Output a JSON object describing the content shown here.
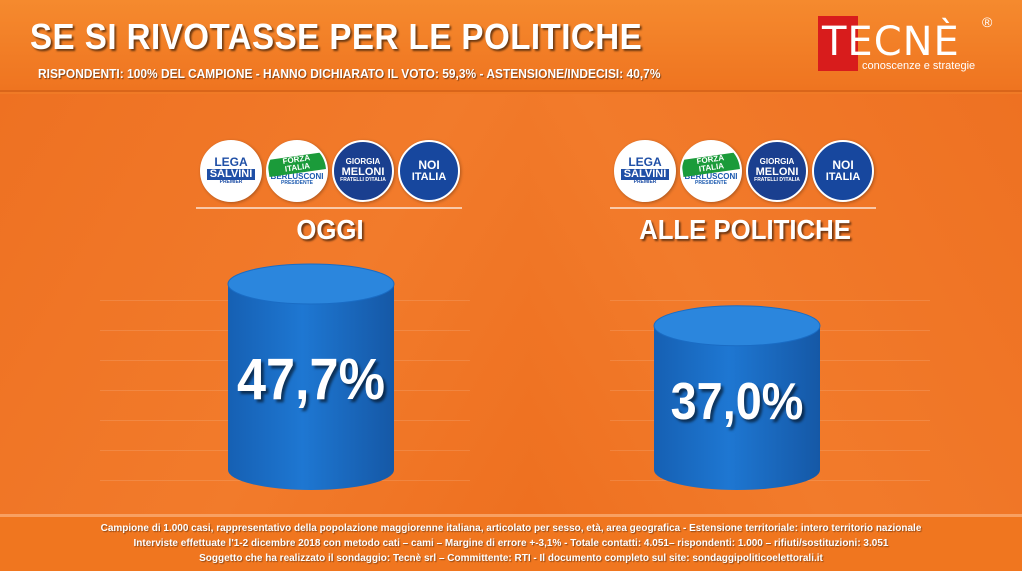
{
  "header": {
    "title": "SE SI RIVOTASSE PER LE POLITICHE",
    "subtitle": "RISPONDENTI: 100% DEL CAMPIONE - HANNO DICHIARATO IL VOTO: 59,3% - ASTENSIONE/INDECISI: 40,7%"
  },
  "logo": {
    "word": "TECNÈ",
    "reg": "®",
    "tagline": "conoscenze e strategie"
  },
  "parties": [
    {
      "icon": "lega-salvini-logo",
      "line1": "LEGA",
      "line2": "SALVINI",
      "line3": "PREMIER",
      "bg": "#ffffff",
      "fg": "#1f4fa6"
    },
    {
      "icon": "forza-italia-berlusconi-logo",
      "line1": "FORZA ITALIA",
      "line2": "BERLUSCONI",
      "line3": "PRESIDENTE",
      "bg": "#ffffff",
      "fg": "#1d5bb0"
    },
    {
      "icon": "fratelli-italia-meloni-logo",
      "line1": "GIORGIA",
      "line2": "MELONI",
      "line3": "FRATELLI D'ITALIA",
      "bg": "#1a3f8f",
      "fg": "#ffffff"
    },
    {
      "icon": "noi-con-italia-logo",
      "line1": "NOI",
      "line2": "ITALIA",
      "line3": "",
      "bg": "#17479e",
      "fg": "#ffffff"
    }
  ],
  "chart_data": {
    "type": "bar",
    "categories": [
      "OGGI",
      "ALLE POLITICHE"
    ],
    "values": [
      47.7,
      37.0
    ],
    "value_labels": [
      "47,7%",
      "37,0%"
    ],
    "title": "SE SI RIVOTASSE PER LE POLITICHE",
    "bar_color": "#1e77d2",
    "grid": true,
    "legend": "none"
  },
  "footer": {
    "line1": "Campione di 1.000 casi, rappresentativo della popolazione maggiorenne italiana, articolato per sesso, età, area geografica - Estensione territoriale: intero territorio nazionale",
    "line2": "Interviste effettuate l'1-2 dicembre 2018 con metodo cati – cami – Margine di errore +-3,1% - Totale contatti: 4.051– rispondenti: 1.000 – rifiuti/sostituzioni: 3.051",
    "line3": "Soggetto che ha realizzato il sondaggio: Tecnè srl – Committente: RTI - Il documento completo sul site: sondaggipoliticoelettorali.it"
  }
}
